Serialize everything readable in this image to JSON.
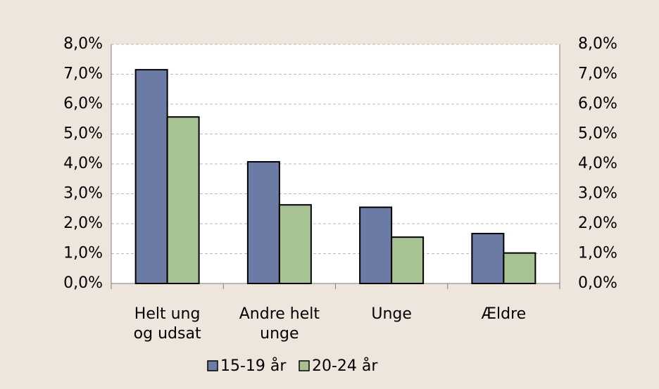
{
  "chart_data": {
    "type": "bar",
    "categories": [
      "Helt ung\nog udsat",
      "Andre helt\nunge",
      "Unge",
      "Ældre"
    ],
    "series": [
      {
        "name": "15-19 år",
        "color": "#6b7ba5",
        "values": [
          7.15,
          4.07,
          2.55,
          1.67
        ]
      },
      {
        "name": "20-24 år",
        "color": "#a7c394",
        "values": [
          5.57,
          2.63,
          1.55,
          1.02
        ]
      }
    ],
    "ylim": [
      0,
      8
    ],
    "yticks": [
      {
        "value": 0,
        "label": "0,0%"
      },
      {
        "value": 1,
        "label": "1,0%"
      },
      {
        "value": 2,
        "label": "2,0%"
      },
      {
        "value": 3,
        "label": "3,0%"
      },
      {
        "value": 4,
        "label": "4,0%"
      },
      {
        "value": 5,
        "label": "5,0%"
      },
      {
        "value": 6,
        "label": "6,0%"
      },
      {
        "value": 7,
        "label": "7,0%"
      },
      {
        "value": 8,
        "label": "8,0%"
      }
    ],
    "y2lim": [
      0,
      8
    ],
    "y2ticks": [
      {
        "value": 0,
        "label": "0,0%"
      },
      {
        "value": 1,
        "label": "1,0%"
      },
      {
        "value": 2,
        "label": "2,0%"
      },
      {
        "value": 3,
        "label": "3,0%"
      },
      {
        "value": 4,
        "label": "4,0%"
      },
      {
        "value": 5,
        "label": "5,0%"
      },
      {
        "value": 6,
        "label": "6,0%"
      },
      {
        "value": 7,
        "label": "7,0%"
      },
      {
        "value": 8,
        "label": "8,0%"
      }
    ],
    "grid": true
  }
}
